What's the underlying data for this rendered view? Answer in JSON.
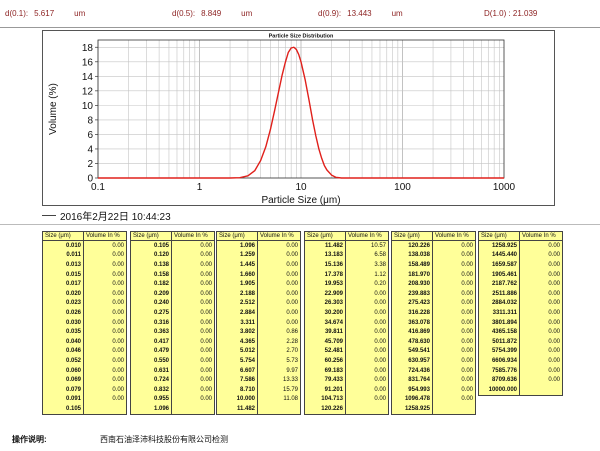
{
  "stats": {
    "d01_label": "d(0.1):",
    "d01_value": "5.617",
    "d01_unit": "um",
    "d05_label": "d(0.5):",
    "d05_value": "8.849",
    "d05_unit": "um",
    "d09_label": "d(0.9):",
    "d09_value": "13.443",
    "d09_unit": "um",
    "d10": "D(1.0) : 21.039"
  },
  "timestamp": "2016年2月22日 10:44:23",
  "footer": {
    "label": "操作说明:",
    "note": "西南石油泽沛科技股份有限公司检测"
  },
  "colors": {
    "curve": "#e0201b",
    "table_bg": "#ffff99",
    "stats_text": "#8b1f1f"
  },
  "chart_data": {
    "type": "line",
    "title": "Particle Size Distribution",
    "xlabel": "Particle Size (μm)",
    "ylabel": "Volume (%)",
    "xscale": "log",
    "xlim": [
      0.1,
      1000
    ],
    "ylim": [
      0,
      19
    ],
    "xticks": [
      "0.1",
      "1",
      "10",
      "100",
      "1000"
    ],
    "yticks": [
      "0",
      "2",
      "4",
      "6",
      "8",
      "10",
      "12",
      "14",
      "16",
      "18"
    ],
    "grid": true,
    "x": [
      0.1,
      1,
      2.0,
      2.5,
      3.0,
      3.5,
      4.0,
      4.5,
      5.0,
      5.5,
      6.0,
      6.5,
      7.0,
      7.5,
      8.0,
      8.5,
      9.0,
      9.5,
      10,
      11,
      12,
      13,
      14,
      15,
      16,
      17,
      18,
      20,
      22,
      25,
      30,
      40,
      100,
      1000
    ],
    "y": [
      0,
      0,
      0,
      0.05,
      0.3,
      1.0,
      2.4,
      4.3,
      6.7,
      9.3,
      11.8,
      14.1,
      15.9,
      17.3,
      17.9,
      18.0,
      17.7,
      17.0,
      16.0,
      13.5,
      10.7,
      8.0,
      5.8,
      4.0,
      2.7,
      1.7,
      1.1,
      0.4,
      0.1,
      0,
      0,
      0,
      0,
      0
    ]
  },
  "tables": [
    {
      "headers": [
        "Size (μm)",
        "Volume In %"
      ],
      "rows": [
        [
          "0.010",
          "0.00"
        ],
        [
          "0.011",
          "0.00"
        ],
        [
          "0.013",
          "0.00"
        ],
        [
          "0.015",
          "0.00"
        ],
        [
          "0.017",
          "0.00"
        ],
        [
          "0.020",
          "0.00"
        ],
        [
          "0.023",
          "0.00"
        ],
        [
          "0.026",
          "0.00"
        ],
        [
          "0.030",
          "0.00"
        ],
        [
          "0.035",
          "0.00"
        ],
        [
          "0.040",
          "0.00"
        ],
        [
          "0.046",
          "0.00"
        ],
        [
          "0.052",
          "0.00"
        ],
        [
          "0.060",
          "0.00"
        ],
        [
          "0.069",
          "0.00"
        ],
        [
          "0.079",
          "0.00"
        ],
        [
          "0.091",
          "0.00"
        ],
        [
          "0.105",
          ""
        ]
      ]
    },
    {
      "headers": [
        "Size (μm)",
        "Volume In %"
      ],
      "rows": [
        [
          "0.105",
          "0.00"
        ],
        [
          "0.120",
          "0.00"
        ],
        [
          "0.138",
          "0.00"
        ],
        [
          "0.158",
          "0.00"
        ],
        [
          "0.182",
          "0.00"
        ],
        [
          "0.209",
          "0.00"
        ],
        [
          "0.240",
          "0.00"
        ],
        [
          "0.275",
          "0.00"
        ],
        [
          "0.316",
          "0.00"
        ],
        [
          "0.363",
          "0.00"
        ],
        [
          "0.417",
          "0.00"
        ],
        [
          "0.479",
          "0.00"
        ],
        [
          "0.550",
          "0.00"
        ],
        [
          "0.631",
          "0.00"
        ],
        [
          "0.724",
          "0.00"
        ],
        [
          "0.832",
          "0.00"
        ],
        [
          "0.955",
          "0.00"
        ],
        [
          "1.096",
          ""
        ]
      ]
    },
    {
      "headers": [
        "Size (μm)",
        "Volume In %"
      ],
      "rows": [
        [
          "1.096",
          "0.00"
        ],
        [
          "1.259",
          "0.00"
        ],
        [
          "1.445",
          "0.00"
        ],
        [
          "1.660",
          "0.00"
        ],
        [
          "1.905",
          "0.00"
        ],
        [
          "2.188",
          "0.00"
        ],
        [
          "2.512",
          "0.00"
        ],
        [
          "2.884",
          "0.00"
        ],
        [
          "3.311",
          "0.00"
        ],
        [
          "3.802",
          "0.86"
        ],
        [
          "4.365",
          "2.28"
        ],
        [
          "5.012",
          "2.70"
        ],
        [
          "5.754",
          "5.73"
        ],
        [
          "6.607",
          "9.97"
        ],
        [
          "7.586",
          "13.33"
        ],
        [
          "8.710",
          "15.79"
        ],
        [
          "10.000",
          "11.08"
        ],
        [
          "11.482",
          ""
        ]
      ]
    },
    {
      "headers": [
        "Size (μm)",
        "Volume In %"
      ],
      "rows": [
        [
          "11.482",
          "10.57"
        ],
        [
          "13.183",
          "6.58"
        ],
        [
          "15.136",
          "3.38"
        ],
        [
          "17.378",
          "1.12"
        ],
        [
          "19.953",
          "0.20"
        ],
        [
          "22.909",
          "0.00"
        ],
        [
          "26.303",
          "0.00"
        ],
        [
          "30.200",
          "0.00"
        ],
        [
          "34.674",
          "0.00"
        ],
        [
          "39.811",
          "0.00"
        ],
        [
          "45.709",
          "0.00"
        ],
        [
          "52.481",
          "0.00"
        ],
        [
          "60.256",
          "0.00"
        ],
        [
          "69.183",
          "0.00"
        ],
        [
          "79.433",
          "0.00"
        ],
        [
          "91.201",
          "0.00"
        ],
        [
          "104.713",
          "0.00"
        ],
        [
          "120.226",
          ""
        ]
      ]
    },
    {
      "headers": [
        "Size (μm)",
        "Volume In %"
      ],
      "rows": [
        [
          "120.226",
          "0.00"
        ],
        [
          "138.038",
          "0.00"
        ],
        [
          "158.489",
          "0.00"
        ],
        [
          "181.970",
          "0.00"
        ],
        [
          "208.930",
          "0.00"
        ],
        [
          "239.883",
          "0.00"
        ],
        [
          "275.423",
          "0.00"
        ],
        [
          "316.228",
          "0.00"
        ],
        [
          "363.078",
          "0.00"
        ],
        [
          "416.869",
          "0.00"
        ],
        [
          "478.630",
          "0.00"
        ],
        [
          "549.541",
          "0.00"
        ],
        [
          "630.957",
          "0.00"
        ],
        [
          "724.436",
          "0.00"
        ],
        [
          "831.764",
          "0.00"
        ],
        [
          "954.993",
          "0.00"
        ],
        [
          "1096.478",
          "0.00"
        ],
        [
          "1258.925",
          ""
        ]
      ]
    },
    {
      "headers": [
        "Size (μm)",
        "Volume In %"
      ],
      "rows": [
        [
          "1258.925",
          "0.00"
        ],
        [
          "1445.440",
          "0.00"
        ],
        [
          "1659.587",
          "0.00"
        ],
        [
          "1905.461",
          "0.00"
        ],
        [
          "2187.762",
          "0.00"
        ],
        [
          "2511.886",
          "0.00"
        ],
        [
          "2884.032",
          "0.00"
        ],
        [
          "3311.311",
          "0.00"
        ],
        [
          "3801.894",
          "0.00"
        ],
        [
          "4365.158",
          "0.00"
        ],
        [
          "5011.872",
          "0.00"
        ],
        [
          "5754.399",
          "0.00"
        ],
        [
          "6606.934",
          "0.00"
        ],
        [
          "7585.776",
          "0.00"
        ],
        [
          "8709.636",
          "0.00"
        ],
        [
          "10000.000",
          ""
        ]
      ]
    }
  ]
}
